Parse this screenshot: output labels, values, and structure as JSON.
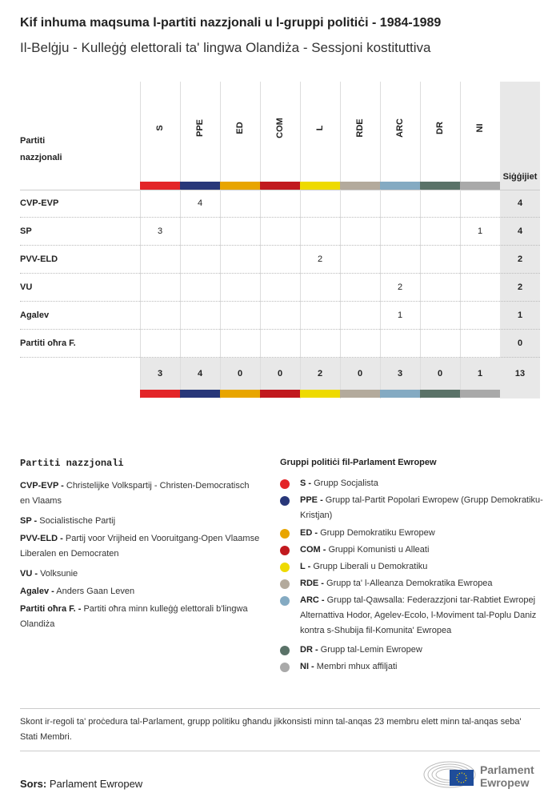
{
  "title": "Kif inhuma maqsuma l-partiti nazzjonali u l-gruppi politiċi - 1984-1989",
  "subtitle": "Il-Belġju - Kulleġġ elettorali ta' lingwa Olandiża - Sessjoni kostituttiva",
  "chart_data": {
    "type": "table",
    "row_header": "Partiti nazzjonali",
    "total_header": "Siġġijiet",
    "groups": [
      {
        "code": "S",
        "color": "#e32528"
      },
      {
        "code": "PPE",
        "color": "#283779"
      },
      {
        "code": "ED",
        "color": "#e8a500"
      },
      {
        "code": "COM",
        "color": "#c1191e"
      },
      {
        "code": "L",
        "color": "#eeda00"
      },
      {
        "code": "RDE",
        "color": "#b3aa9c"
      },
      {
        "code": "ARC",
        "color": "#84aac2"
      },
      {
        "code": "DR",
        "color": "#5a7268"
      },
      {
        "code": "NI",
        "color": "#a9a9a9"
      }
    ],
    "rows": [
      {
        "party": "CVP-EVP",
        "values": [
          "",
          "4",
          "",
          "",
          "",
          "",
          "",
          "",
          ""
        ],
        "total": "4"
      },
      {
        "party": "SP",
        "values": [
          "3",
          "",
          "",
          "",
          "",
          "",
          "",
          "",
          "1"
        ],
        "total": "4"
      },
      {
        "party": "PVV-ELD",
        "values": [
          "",
          "",
          "",
          "",
          "2",
          "",
          "",
          "",
          ""
        ],
        "total": "2"
      },
      {
        "party": "VU",
        "values": [
          "",
          "",
          "",
          "",
          "",
          "",
          "2",
          "",
          ""
        ],
        "total": "2"
      },
      {
        "party": "Agalev",
        "values": [
          "",
          "",
          "",
          "",
          "",
          "",
          "1",
          "",
          ""
        ],
        "total": "1"
      },
      {
        "party": "Partiti oħra F.",
        "values": [
          "",
          "",
          "",
          "",
          "",
          "",
          "",
          "",
          ""
        ],
        "total": "0"
      }
    ],
    "column_totals": [
      "3",
      "4",
      "0",
      "0",
      "2",
      "0",
      "3",
      "0",
      "1"
    ],
    "grand_total": "13"
  },
  "legend_parties": {
    "heading": "Partiti nazzjonali",
    "items": [
      {
        "code": "CVP-EVP -",
        "text": "Christelijke Volkspartij - Christen-Democratisch en Vlaams"
      },
      {
        "code": "SP -",
        "text": "Socialistische Partij"
      },
      {
        "code": "PVV-ELD -",
        "text": "Partij voor Vrijheid en Vooruitgang-Open Vlaamse Liberalen en Democraten"
      },
      {
        "code": "VU -",
        "text": "Volksunie"
      },
      {
        "code": "Agalev -",
        "text": "Anders Gaan Leven"
      },
      {
        "code": "Partiti oħra F. -",
        "text": "Partiti oħra minn kulleġġ elettorali b'lingwa Olandiża"
      }
    ]
  },
  "legend_groups": {
    "heading": "Gruppi politiċi fil-Parlament Ewropew",
    "items": [
      {
        "code": "S -",
        "text": "Grupp Socjalista"
      },
      {
        "code": "PPE -",
        "text": "Grupp tal-Partit Popolari Ewropew (Grupp Demokratiku-Kristjan)"
      },
      {
        "code": "ED -",
        "text": "Grupp Demokratiku Ewropew"
      },
      {
        "code": "COM -",
        "text": "Gruppi Komunisti u Alleati"
      },
      {
        "code": "L -",
        "text": "Grupp Liberali u Demokratiku"
      },
      {
        "code": "RDE -",
        "text": "Grupp ta' l-Alleanza Demokratika Ewropea"
      },
      {
        "code": "ARC -",
        "text": "Grupp tal-Qawsalla: Federazzjoni tar-Rabtiet Ewropej Alternattiva Hodor, Agelev-Ecolo, l-Moviment tal-Poplu Daniz kontra s-Shubija fil-Komunita' Ewropea"
      },
      {
        "code": "DR -",
        "text": "Grupp tal-Lemin Ewropew"
      },
      {
        "code": "NI -",
        "text": "Membri mhux affiljati"
      }
    ]
  },
  "note": "Skont ir-regoli ta' proċedura tal-Parlament, grupp politiku għandu jikkonsisti minn tal-anqas 23 membru elett minn tal-anqas seba' Stati Membri.",
  "source": {
    "label": "Sors:",
    "text": "Parlament Ewropew"
  },
  "logo": {
    "line1": "Parlament",
    "line2": "Ewropew"
  }
}
